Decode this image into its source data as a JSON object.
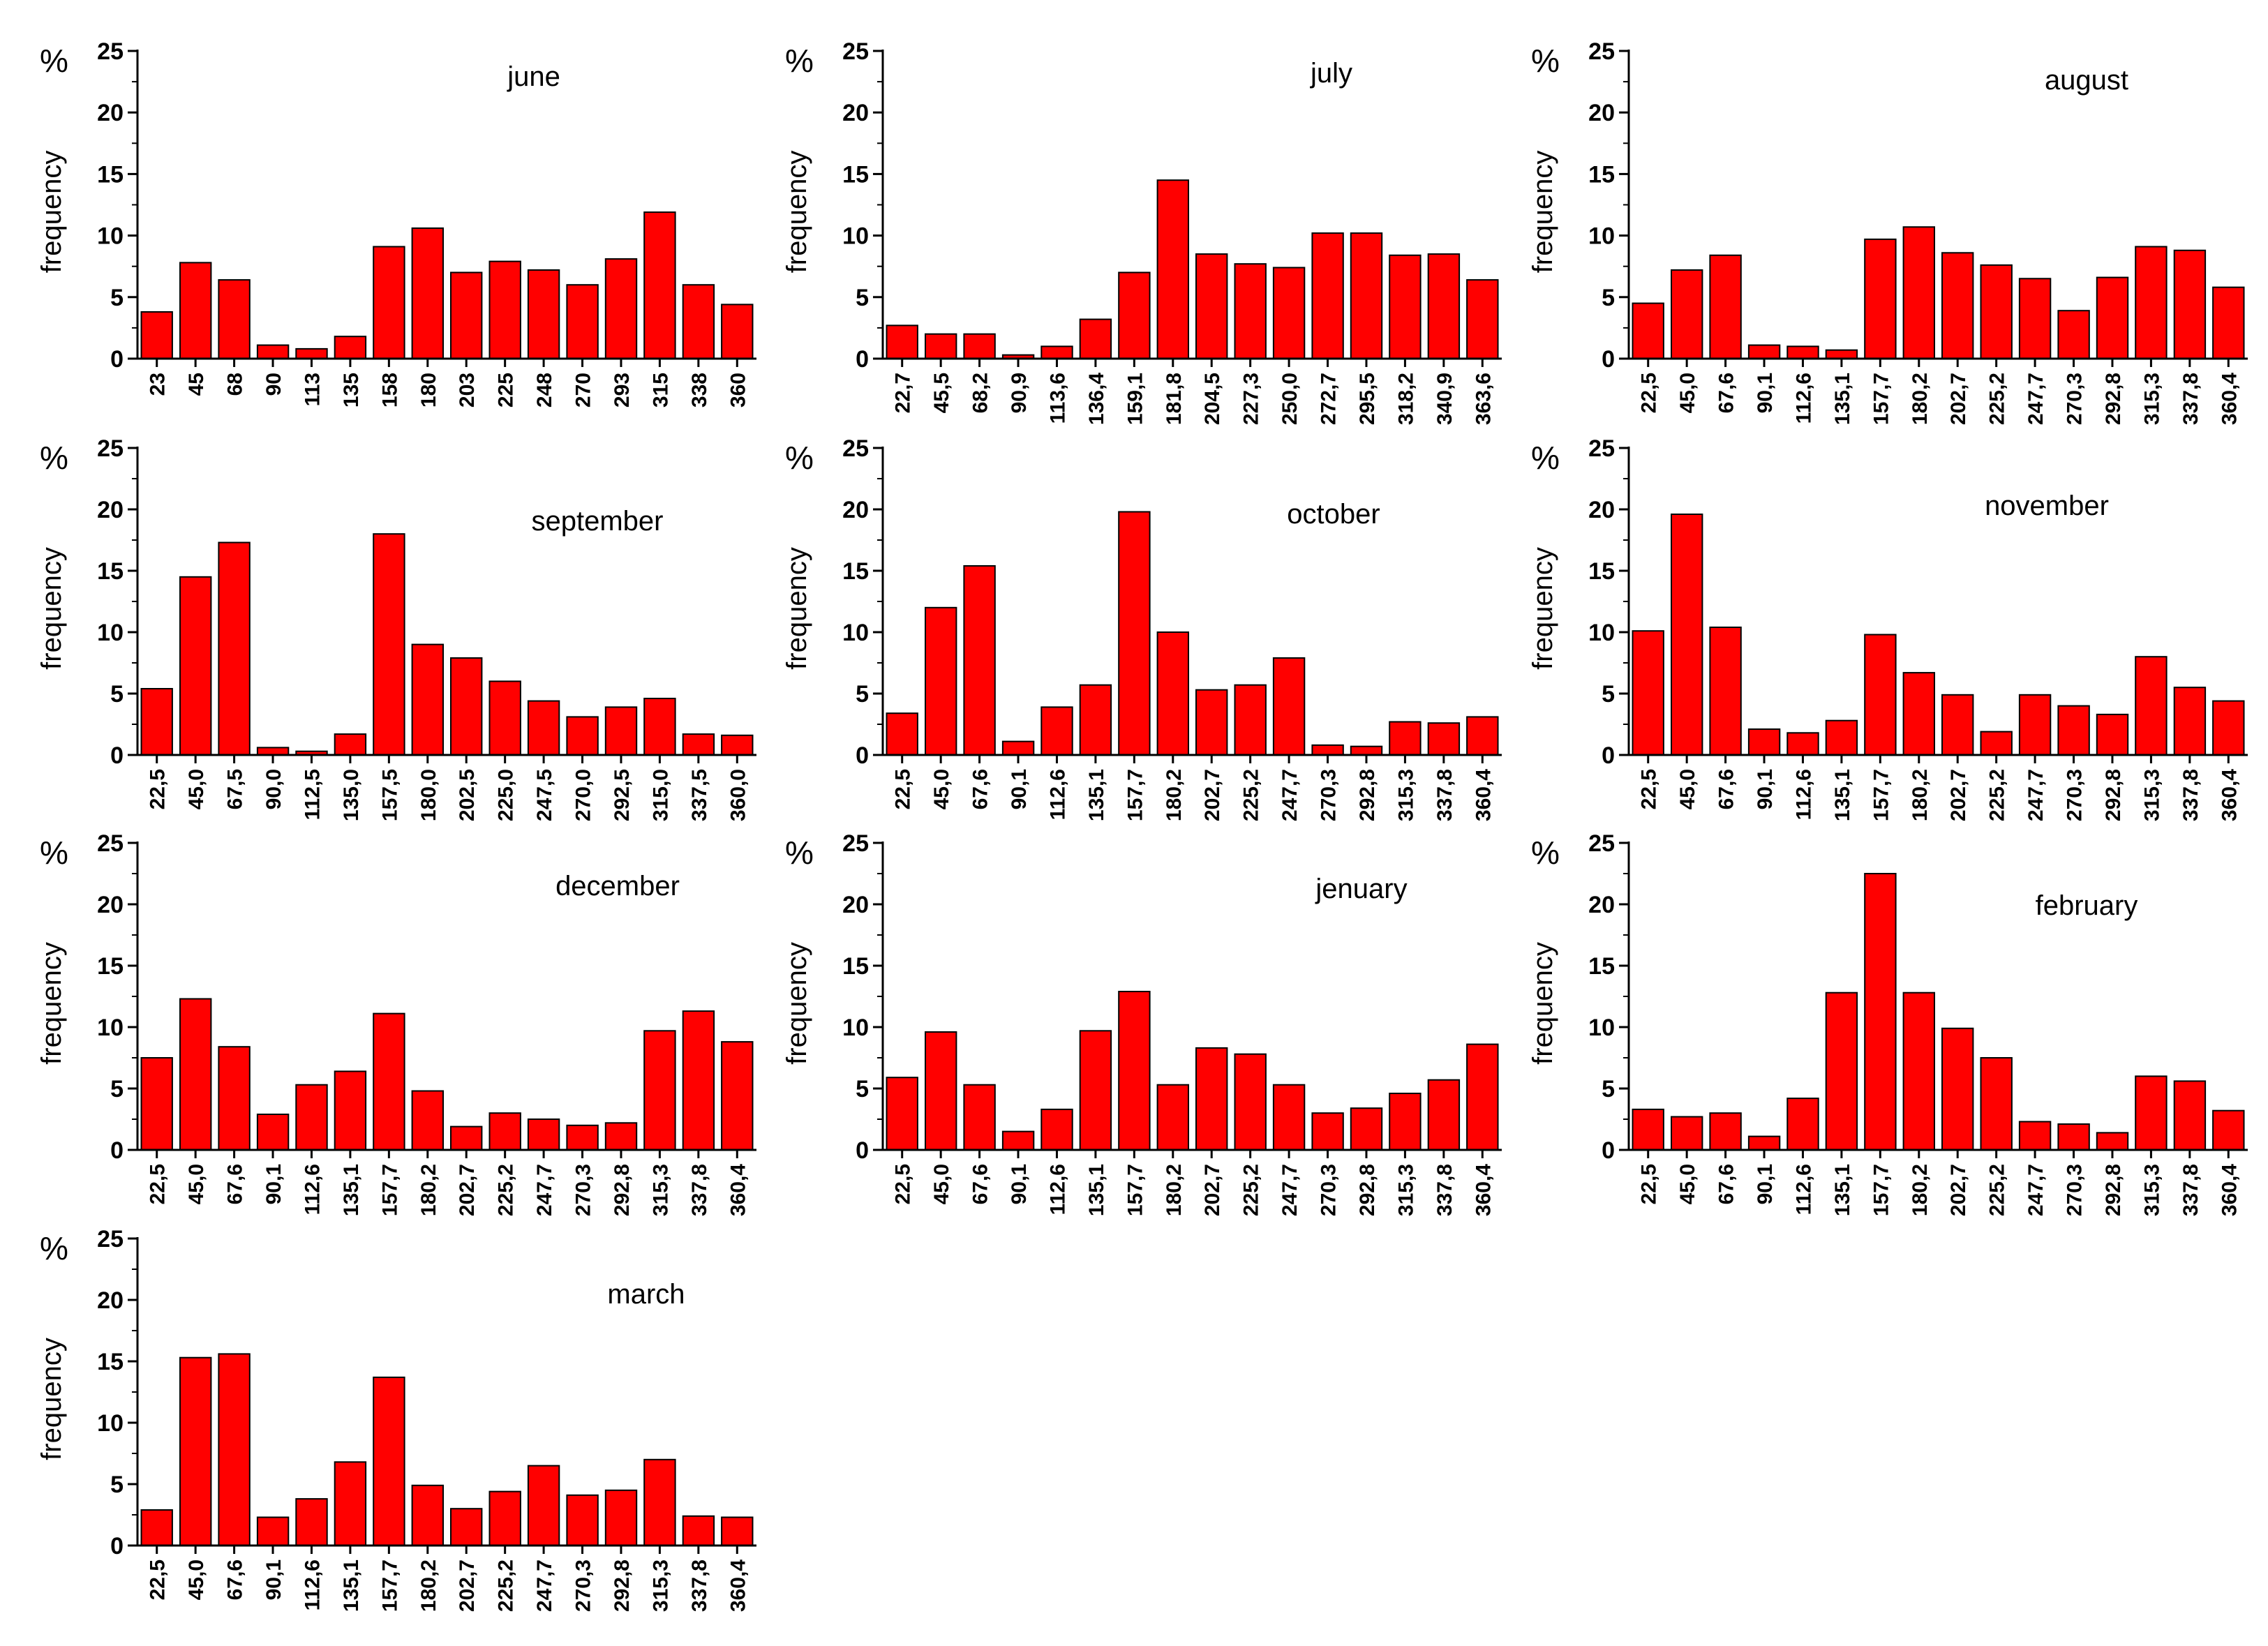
{
  "figure": {
    "y_unit_label": "%",
    "ylabel": "frequency"
  },
  "style": {
    "bar_color": "#ff0000",
    "bar_edge": "#000000",
    "axis_color": "#000000"
  },
  "chart_data": [
    {
      "type": "bar",
      "title": "june",
      "ylabel": "frequency",
      "unit": "%",
      "ylim": [
        0,
        25
      ],
      "yticks": [
        0,
        5,
        10,
        15,
        20,
        25
      ],
      "categories": [
        "23",
        "45",
        "68",
        "90",
        "113",
        "135",
        "158",
        "180",
        "203",
        "225",
        "248",
        "270",
        "293",
        "315",
        "338",
        "360"
      ],
      "values": [
        3.8,
        7.8,
        6.4,
        1.1,
        0.8,
        1.8,
        9.1,
        10.6,
        7.0,
        7.9,
        7.2,
        6.0,
        8.1,
        11.9,
        6.0,
        4.4
      ]
    },
    {
      "type": "bar",
      "title": "july",
      "ylabel": "frequency",
      "unit": "%",
      "ylim": [
        0,
        25
      ],
      "yticks": [
        0,
        5,
        10,
        15,
        20,
        25
      ],
      "categories": [
        "22,7",
        "45,5",
        "68,2",
        "90,9",
        "113,6",
        "136,4",
        "159,1",
        "181,8",
        "204,5",
        "227,3",
        "250,0",
        "272,7",
        "295,5",
        "318,2",
        "340,9",
        "363,6"
      ],
      "values": [
        2.7,
        2.0,
        2.0,
        0.3,
        1.0,
        3.2,
        7.0,
        14.5,
        8.5,
        7.7,
        7.4,
        10.2,
        10.2,
        8.4,
        8.5,
        6.4
      ]
    },
    {
      "type": "bar",
      "title": "august",
      "ylabel": "frequency",
      "unit": "%",
      "ylim": [
        0,
        25
      ],
      "yticks": [
        0,
        5,
        10,
        15,
        20,
        25
      ],
      "categories": [
        "22,5",
        "45,0",
        "67,6",
        "90,1",
        "112,6",
        "135,1",
        "157,7",
        "180,2",
        "202,7",
        "225,2",
        "247,7",
        "270,3",
        "292,8",
        "315,3",
        "337,8",
        "360,4"
      ],
      "values": [
        4.5,
        7.2,
        8.4,
        1.1,
        1.0,
        0.7,
        9.7,
        10.7,
        8.6,
        7.6,
        6.5,
        3.9,
        6.6,
        9.1,
        8.8,
        5.8
      ]
    },
    {
      "type": "bar",
      "title": "september",
      "ylabel": "frequency",
      "unit": "%",
      "ylim": [
        0,
        25
      ],
      "yticks": [
        0,
        5,
        10,
        15,
        20,
        25
      ],
      "categories": [
        "22,5",
        "45,0",
        "67,5",
        "90,0",
        "112,5",
        "135,0",
        "157,5",
        "180,0",
        "202,5",
        "225,0",
        "247,5",
        "270,0",
        "292,5",
        "315,0",
        "337,5",
        "360,0"
      ],
      "values": [
        5.4,
        14.5,
        17.3,
        0.6,
        0.3,
        1.7,
        18.0,
        9.0,
        7.9,
        6.0,
        4.4,
        3.1,
        3.9,
        4.6,
        1.7,
        1.6
      ]
    },
    {
      "type": "bar",
      "title": "october",
      "ylabel": "frequency",
      "unit": "%",
      "ylim": [
        0,
        25
      ],
      "yticks": [
        0,
        5,
        10,
        15,
        20,
        25
      ],
      "categories": [
        "22,5",
        "45,0",
        "67,6",
        "90,1",
        "112,6",
        "135,1",
        "157,7",
        "180,2",
        "202,7",
        "225,2",
        "247,7",
        "270,3",
        "292,8",
        "315,3",
        "337,8",
        "360,4"
      ],
      "values": [
        3.4,
        12.0,
        15.4,
        1.1,
        3.9,
        5.7,
        19.8,
        10.0,
        5.3,
        5.7,
        7.9,
        0.8,
        0.7,
        2.7,
        2.6,
        3.1
      ]
    },
    {
      "type": "bar",
      "title": "november",
      "ylabel": "frequency",
      "unit": "%",
      "ylim": [
        0,
        25
      ],
      "yticks": [
        0,
        5,
        10,
        15,
        20,
        25
      ],
      "categories": [
        "22,5",
        "45,0",
        "67,6",
        "90,1",
        "112,6",
        "135,1",
        "157,7",
        "180,2",
        "202,7",
        "225,2",
        "247,7",
        "270,3",
        "292,8",
        "315,3",
        "337,8",
        "360,4"
      ],
      "values": [
        10.1,
        19.6,
        10.4,
        2.1,
        1.8,
        2.8,
        9.8,
        6.7,
        4.9,
        1.9,
        4.9,
        4.0,
        3.3,
        8.0,
        5.5,
        4.4
      ]
    },
    {
      "type": "bar",
      "title": "december",
      "ylabel": "frequency",
      "unit": "%",
      "ylim": [
        0,
        25
      ],
      "yticks": [
        0,
        5,
        10,
        15,
        20,
        25
      ],
      "categories": [
        "22,5",
        "45,0",
        "67,6",
        "90,1",
        "112,6",
        "135,1",
        "157,7",
        "180,2",
        "202,7",
        "225,2",
        "247,7",
        "270,3",
        "292,8",
        "315,3",
        "337,8",
        "360,4"
      ],
      "values": [
        7.5,
        12.3,
        8.4,
        2.9,
        5.3,
        6.4,
        11.1,
        4.8,
        1.9,
        3.0,
        2.5,
        2.0,
        2.2,
        9.7,
        11.3,
        8.8
      ]
    },
    {
      "type": "bar",
      "title": "jenuary",
      "ylabel": "frequency",
      "unit": "%",
      "ylim": [
        0,
        25
      ],
      "yticks": [
        0,
        5,
        10,
        15,
        20,
        25
      ],
      "categories": [
        "22,5",
        "45,0",
        "67,6",
        "90,1",
        "112,6",
        "135,1",
        "157,7",
        "180,2",
        "202,7",
        "225,2",
        "247,7",
        "270,3",
        "292,8",
        "315,3",
        "337,8",
        "360,4"
      ],
      "values": [
        5.9,
        9.6,
        5.3,
        1.5,
        3.3,
        9.7,
        12.9,
        5.3,
        8.3,
        7.8,
        5.3,
        3.0,
        3.4,
        4.6,
        5.7,
        8.6
      ]
    },
    {
      "type": "bar",
      "title": "february",
      "ylabel": "frequency",
      "unit": "%",
      "ylim": [
        0,
        25
      ],
      "yticks": [
        0,
        5,
        10,
        15,
        20,
        25
      ],
      "categories": [
        "22,5",
        "45,0",
        "67,6",
        "90,1",
        "112,6",
        "135,1",
        "157,7",
        "180,2",
        "202,7",
        "225,2",
        "247,7",
        "270,3",
        "292,8",
        "315,3",
        "337,8",
        "360,4"
      ],
      "values": [
        3.3,
        2.7,
        3.0,
        1.1,
        4.2,
        12.8,
        22.5,
        12.8,
        9.9,
        7.5,
        2.3,
        2.1,
        1.4,
        6.0,
        5.6,
        3.2
      ]
    },
    {
      "type": "bar",
      "title": "march",
      "ylabel": "frequency",
      "unit": "%",
      "ylim": [
        0,
        25
      ],
      "yticks": [
        0,
        5,
        10,
        15,
        20,
        25
      ],
      "categories": [
        "22,5",
        "45,0",
        "67,6",
        "90,1",
        "112,6",
        "135,1",
        "157,7",
        "180,2",
        "202,7",
        "225,2",
        "247,7",
        "270,3",
        "292,8",
        "315,3",
        "337,8",
        "360,4"
      ],
      "values": [
        2.9,
        15.3,
        15.6,
        2.3,
        3.8,
        6.8,
        13.7,
        4.9,
        3.0,
        4.4,
        6.5,
        4.1,
        4.5,
        7.0,
        2.4,
        2.3
      ]
    }
  ]
}
